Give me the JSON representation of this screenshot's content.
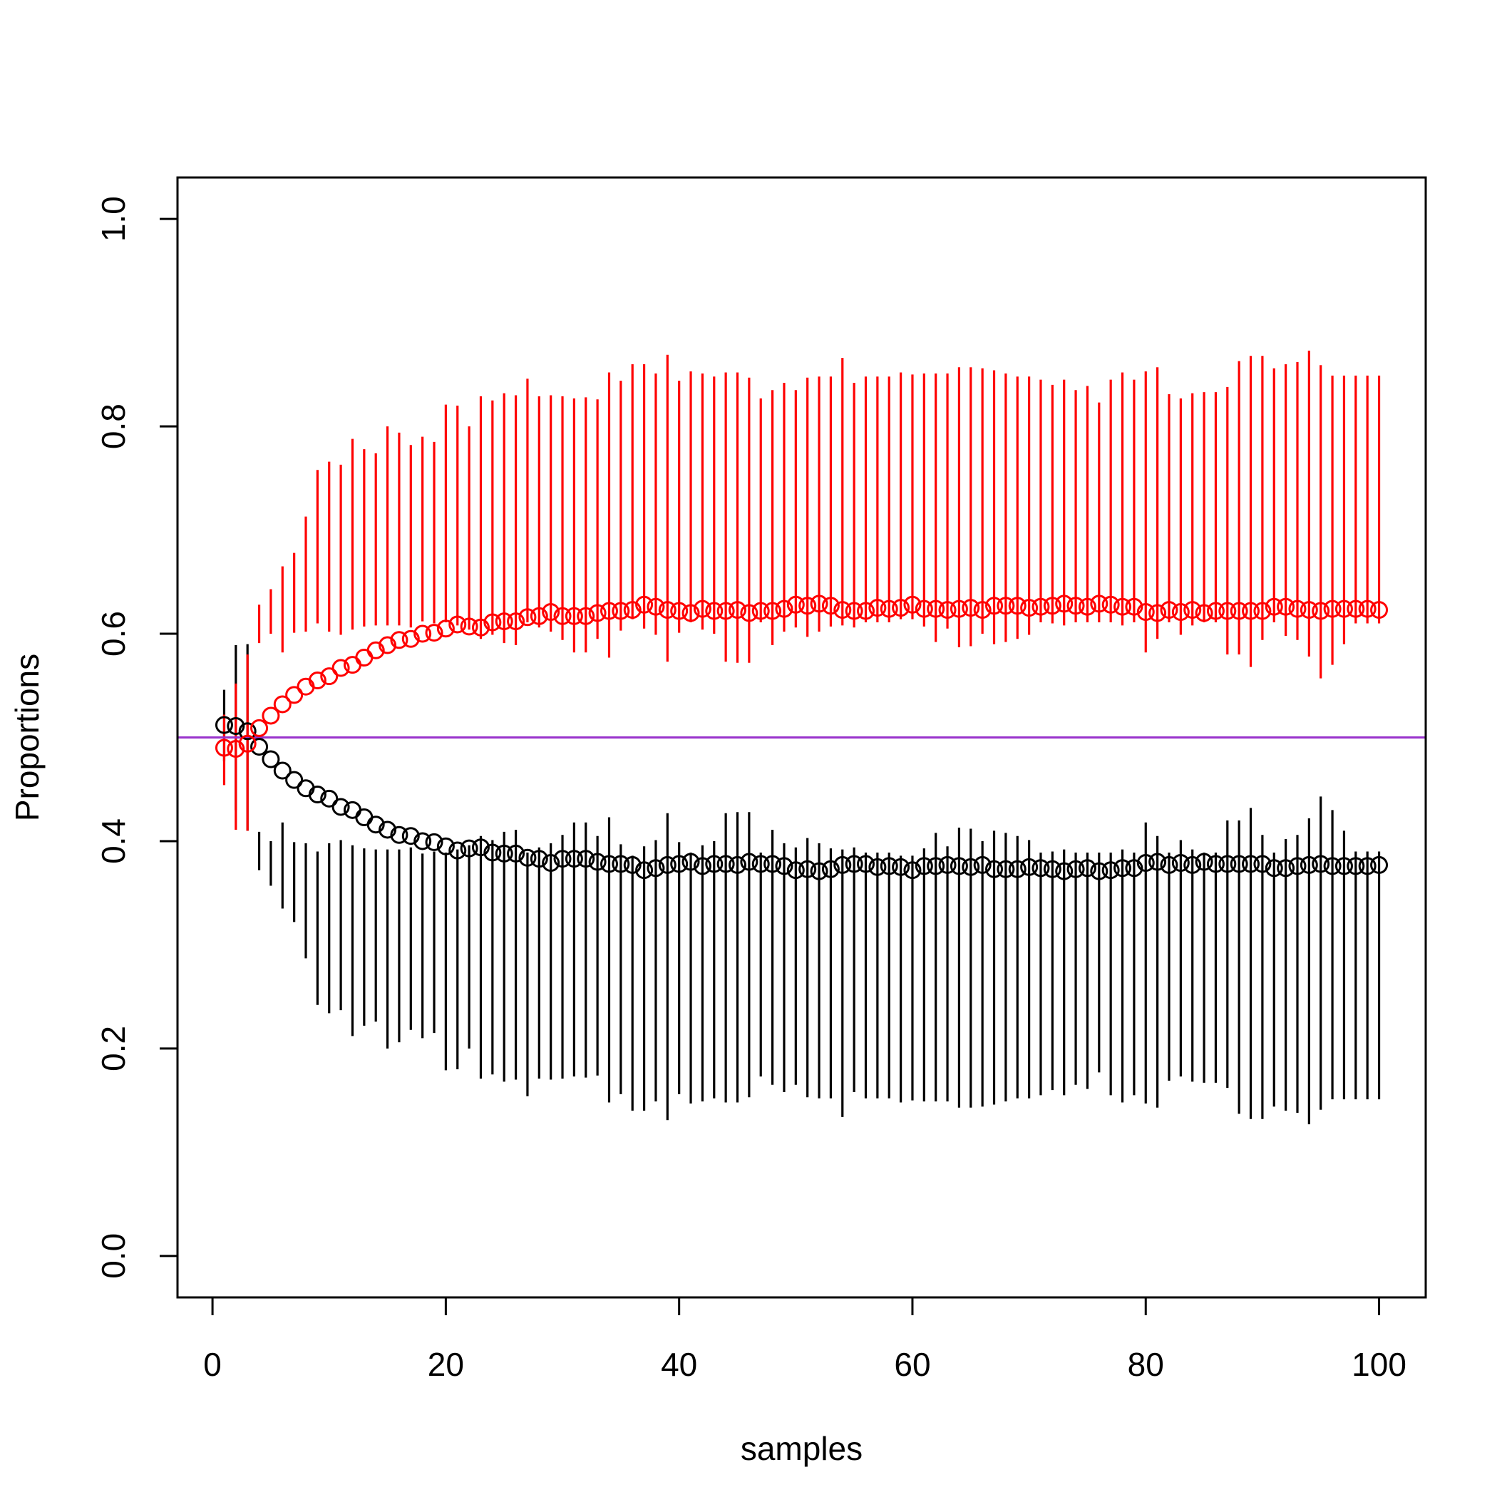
{
  "chart_data": {
    "type": "scatter",
    "title": "",
    "xlabel": "samples",
    "ylabel": "Proportions",
    "xlim": [
      -3,
      104
    ],
    "ylim": [
      -0.04,
      1.04
    ],
    "x_ticks": [
      0,
      20,
      40,
      60,
      80,
      100
    ],
    "x_tick_labels": [
      "0",
      "20",
      "40",
      "60",
      "80",
      "100"
    ],
    "y_ticks": [
      0,
      0.2,
      0.4,
      0.6,
      0.8,
      1.0
    ],
    "y_tick_labels": [
      "0.0",
      "0.2",
      "0.4",
      "0.6",
      "0.8",
      "1.0"
    ],
    "grid": false,
    "marker": "open-circle",
    "reference_line": {
      "y": 0.5,
      "color": "#9932CC"
    },
    "series": [
      {
        "color": "#000000",
        "x": [
          1,
          2,
          3,
          4,
          5,
          6,
          7,
          8,
          9,
          10,
          11,
          12,
          13,
          14,
          15,
          16,
          17,
          18,
          19,
          20,
          21,
          22,
          23,
          24,
          25,
          26,
          27,
          28,
          29,
          30,
          31,
          32,
          33,
          34,
          35,
          36,
          37,
          38,
          39,
          40,
          41,
          42,
          43,
          44,
          45,
          46,
          47,
          48,
          49,
          50,
          51,
          52,
          53,
          54,
          55,
          56,
          57,
          58,
          59,
          60,
          61,
          62,
          63,
          64,
          65,
          66,
          67,
          68,
          69,
          70,
          71,
          72,
          73,
          74,
          75,
          76,
          77,
          78,
          79,
          80,
          81,
          82,
          83,
          84,
          85,
          86,
          87,
          88,
          89,
          90,
          91,
          92,
          93,
          94,
          95,
          96,
          97,
          98,
          99,
          100
        ],
        "y": [
          0.512,
          0.511,
          0.506,
          0.491,
          0.479,
          0.468,
          0.459,
          0.451,
          0.445,
          0.441,
          0.433,
          0.43,
          0.423,
          0.416,
          0.411,
          0.406,
          0.405,
          0.4,
          0.399,
          0.395,
          0.391,
          0.393,
          0.394,
          0.389,
          0.388,
          0.388,
          0.384,
          0.383,
          0.379,
          0.383,
          0.383,
          0.383,
          0.38,
          0.378,
          0.378,
          0.377,
          0.372,
          0.374,
          0.377,
          0.378,
          0.38,
          0.376,
          0.378,
          0.378,
          0.377,
          0.38,
          0.378,
          0.378,
          0.376,
          0.372,
          0.373,
          0.371,
          0.373,
          0.377,
          0.378,
          0.378,
          0.375,
          0.376,
          0.375,
          0.372,
          0.376,
          0.376,
          0.377,
          0.376,
          0.375,
          0.377,
          0.373,
          0.373,
          0.373,
          0.375,
          0.374,
          0.373,
          0.371,
          0.373,
          0.374,
          0.371,
          0.372,
          0.374,
          0.374,
          0.379,
          0.38,
          0.377,
          0.379,
          0.377,
          0.38,
          0.378,
          0.378,
          0.378,
          0.378,
          0.378,
          0.374,
          0.374,
          0.376,
          0.377,
          0.378,
          0.376,
          0.376,
          0.376,
          0.376,
          0.377
        ],
        "lower": [
          0.477,
          0.43,
          0.41,
          0.372,
          0.357,
          0.335,
          0.322,
          0.287,
          0.242,
          0.234,
          0.237,
          0.212,
          0.222,
          0.226,
          0.2,
          0.206,
          0.218,
          0.21,
          0.215,
          0.179,
          0.18,
          0.2,
          0.171,
          0.175,
          0.168,
          0.17,
          0.154,
          0.171,
          0.17,
          0.171,
          0.173,
          0.172,
          0.174,
          0.148,
          0.156,
          0.14,
          0.14,
          0.149,
          0.131,
          0.156,
          0.147,
          0.149,
          0.152,
          0.148,
          0.148,
          0.153,
          0.173,
          0.165,
          0.158,
          0.165,
          0.153,
          0.152,
          0.152,
          0.134,
          0.158,
          0.152,
          0.152,
          0.152,
          0.148,
          0.15,
          0.149,
          0.149,
          0.149,
          0.143,
          0.143,
          0.144,
          0.146,
          0.149,
          0.152,
          0.152,
          0.155,
          0.16,
          0.155,
          0.165,
          0.161,
          0.177,
          0.155,
          0.148,
          0.155,
          0.147,
          0.143,
          0.169,
          0.173,
          0.168,
          0.167,
          0.167,
          0.162,
          0.137,
          0.132,
          0.132,
          0.144,
          0.14,
          0.138,
          0.127,
          0.141,
          0.151,
          0.151,
          0.151,
          0.151,
          0.151
        ],
        "upper": [
          0.546,
          0.589,
          0.59,
          0.409,
          0.4,
          0.418,
          0.399,
          0.398,
          0.39,
          0.398,
          0.401,
          0.396,
          0.393,
          0.392,
          0.392,
          0.392,
          0.394,
          0.388,
          0.39,
          0.389,
          0.392,
          0.396,
          0.405,
          0.401,
          0.409,
          0.411,
          0.389,
          0.394,
          0.398,
          0.406,
          0.418,
          0.418,
          0.405,
          0.423,
          0.397,
          0.386,
          0.395,
          0.401,
          0.427,
          0.399,
          0.389,
          0.396,
          0.4,
          0.427,
          0.428,
          0.428,
          0.389,
          0.411,
          0.398,
          0.394,
          0.403,
          0.398,
          0.393,
          0.392,
          0.394,
          0.389,
          0.389,
          0.389,
          0.386,
          0.386,
          0.393,
          0.408,
          0.395,
          0.413,
          0.412,
          0.4,
          0.41,
          0.408,
          0.405,
          0.401,
          0.389,
          0.39,
          0.392,
          0.389,
          0.389,
          0.389,
          0.389,
          0.392,
          0.389,
          0.418,
          0.405,
          0.389,
          0.401,
          0.392,
          0.389,
          0.389,
          0.42,
          0.42,
          0.432,
          0.406,
          0.389,
          0.402,
          0.406,
          0.422,
          0.443,
          0.43,
          0.41,
          0.39,
          0.39,
          0.39
        ]
      },
      {
        "color": "#FF0000",
        "x": [
          1,
          2,
          3,
          4,
          5,
          6,
          7,
          8,
          9,
          10,
          11,
          12,
          13,
          14,
          15,
          16,
          17,
          18,
          19,
          20,
          21,
          22,
          23,
          24,
          25,
          26,
          27,
          28,
          29,
          30,
          31,
          32,
          33,
          34,
          35,
          36,
          37,
          38,
          39,
          40,
          41,
          42,
          43,
          44,
          45,
          46,
          47,
          48,
          49,
          50,
          51,
          52,
          53,
          54,
          55,
          56,
          57,
          58,
          59,
          60,
          61,
          62,
          63,
          64,
          65,
          66,
          67,
          68,
          69,
          70,
          71,
          72,
          73,
          74,
          75,
          76,
          77,
          78,
          79,
          80,
          81,
          82,
          83,
          84,
          85,
          86,
          87,
          88,
          89,
          90,
          91,
          92,
          93,
          94,
          95,
          96,
          97,
          98,
          99,
          100
        ],
        "y": [
          0.49,
          0.489,
          0.494,
          0.509,
          0.521,
          0.532,
          0.541,
          0.549,
          0.555,
          0.559,
          0.567,
          0.57,
          0.577,
          0.584,
          0.589,
          0.594,
          0.595,
          0.6,
          0.601,
          0.605,
          0.609,
          0.607,
          0.606,
          0.611,
          0.612,
          0.612,
          0.616,
          0.617,
          0.621,
          0.617,
          0.617,
          0.617,
          0.62,
          0.622,
          0.622,
          0.623,
          0.628,
          0.626,
          0.623,
          0.622,
          0.62,
          0.624,
          0.622,
          0.622,
          0.623,
          0.62,
          0.622,
          0.622,
          0.624,
          0.628,
          0.627,
          0.629,
          0.627,
          0.623,
          0.622,
          0.622,
          0.625,
          0.624,
          0.625,
          0.628,
          0.624,
          0.624,
          0.623,
          0.624,
          0.625,
          0.623,
          0.627,
          0.627,
          0.627,
          0.625,
          0.626,
          0.627,
          0.629,
          0.627,
          0.626,
          0.629,
          0.628,
          0.626,
          0.626,
          0.621,
          0.62,
          0.623,
          0.621,
          0.623,
          0.62,
          0.622,
          0.622,
          0.622,
          0.622,
          0.622,
          0.626,
          0.626,
          0.624,
          0.623,
          0.622,
          0.624,
          0.624,
          0.624,
          0.624,
          0.623
        ],
        "lower": [
          0.454,
          0.411,
          0.41,
          0.591,
          0.6,
          0.582,
          0.601,
          0.602,
          0.61,
          0.602,
          0.599,
          0.604,
          0.607,
          0.608,
          0.608,
          0.608,
          0.606,
          0.612,
          0.61,
          0.611,
          0.608,
          0.604,
          0.595,
          0.599,
          0.591,
          0.589,
          0.611,
          0.606,
          0.602,
          0.594,
          0.582,
          0.582,
          0.595,
          0.577,
          0.603,
          0.614,
          0.605,
          0.599,
          0.573,
          0.601,
          0.611,
          0.604,
          0.6,
          0.573,
          0.572,
          0.572,
          0.611,
          0.589,
          0.602,
          0.606,
          0.597,
          0.602,
          0.607,
          0.608,
          0.606,
          0.611,
          0.611,
          0.611,
          0.614,
          0.614,
          0.607,
          0.592,
          0.605,
          0.587,
          0.588,
          0.6,
          0.59,
          0.592,
          0.595,
          0.599,
          0.611,
          0.61,
          0.608,
          0.611,
          0.611,
          0.611,
          0.611,
          0.608,
          0.611,
          0.582,
          0.595,
          0.611,
          0.599,
          0.608,
          0.611,
          0.611,
          0.58,
          0.58,
          0.568,
          0.594,
          0.611,
          0.598,
          0.594,
          0.578,
          0.557,
          0.57,
          0.59,
          0.61,
          0.61,
          0.61
        ],
        "upper": [
          0.522,
          0.552,
          0.58,
          0.628,
          0.643,
          0.665,
          0.678,
          0.713,
          0.758,
          0.766,
          0.763,
          0.788,
          0.778,
          0.774,
          0.8,
          0.794,
          0.782,
          0.79,
          0.785,
          0.821,
          0.82,
          0.8,
          0.829,
          0.825,
          0.832,
          0.83,
          0.846,
          0.829,
          0.83,
          0.829,
          0.827,
          0.828,
          0.826,
          0.852,
          0.844,
          0.86,
          0.86,
          0.851,
          0.869,
          0.844,
          0.853,
          0.851,
          0.848,
          0.852,
          0.852,
          0.847,
          0.827,
          0.835,
          0.842,
          0.835,
          0.847,
          0.848,
          0.848,
          0.866,
          0.842,
          0.848,
          0.848,
          0.848,
          0.852,
          0.85,
          0.851,
          0.851,
          0.851,
          0.857,
          0.857,
          0.856,
          0.854,
          0.851,
          0.848,
          0.848,
          0.845,
          0.84,
          0.845,
          0.835,
          0.839,
          0.823,
          0.845,
          0.852,
          0.845,
          0.853,
          0.857,
          0.831,
          0.827,
          0.832,
          0.833,
          0.833,
          0.838,
          0.863,
          0.868,
          0.868,
          0.856,
          0.86,
          0.862,
          0.873,
          0.859,
          0.849,
          0.849,
          0.849,
          0.849,
          0.849
        ]
      }
    ]
  }
}
